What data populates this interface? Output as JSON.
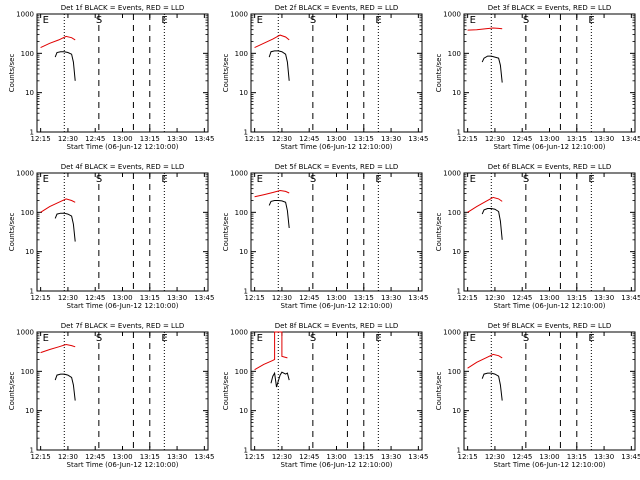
{
  "figure": {
    "x_tick_labels": [
      "12:15",
      "12:30",
      "12:45",
      "13:00",
      "13:15",
      "13:30",
      "13:45"
    ],
    "y_tick_labels": [
      "1",
      "10",
      "100",
      "1000"
    ],
    "ylabel": "Counts/sec",
    "xlabel": "Start Time (06-Jun-12 12:10:00)",
    "markers": [
      "E",
      "S",
      "E"
    ],
    "colors": {
      "events": "#000000",
      "lld": "#e00000",
      "axes": "#000000",
      "background": "#ffffff"
    }
  },
  "chart_data": [
    {
      "type": "line",
      "title": "Det 1f BLACK = Events, RED = LLD",
      "xlabel": "Start Time (06-Jun-12 12:10:00)",
      "ylabel": "Counts/sec",
      "xlim": [
        "12:15",
        "13:45"
      ],
      "ylim": [
        1,
        1000
      ],
      "yscale": "log",
      "grid": false,
      "vlines": {
        "dotted": [
          "12:28",
          "13:23"
        ],
        "dashed": [
          "12:47",
          "13:06",
          "13:15"
        ]
      },
      "series": [
        {
          "name": "LLD",
          "color": "#e00000",
          "x": [
            "12:15",
            "12:20",
            "12:25",
            "12:29",
            "12:32",
            "12:34"
          ],
          "values": [
            140,
            180,
            220,
            270,
            250,
            220
          ]
        },
        {
          "name": "Events",
          "color": "#000000",
          "x": [
            "12:23",
            "12:24",
            "12:26",
            "12:28",
            "12:30",
            "12:32",
            "12:33",
            "12:34"
          ],
          "values": [
            80,
            105,
            110,
            110,
            105,
            95,
            60,
            20
          ]
        }
      ]
    },
    {
      "type": "line",
      "title": "Det 2f BLACK = Events, RED = LLD",
      "xlabel": "Start Time (06-Jun-12 12:10:00)",
      "ylabel": "Counts/sec",
      "xlim": [
        "12:15",
        "13:45"
      ],
      "ylim": [
        1,
        1000
      ],
      "yscale": "log",
      "grid": false,
      "vlines": {
        "dotted": [
          "12:28",
          "13:23"
        ],
        "dashed": [
          "12:47",
          "13:06",
          "13:15"
        ]
      },
      "series": [
        {
          "name": "LLD",
          "color": "#e00000",
          "x": [
            "12:15",
            "12:20",
            "12:25",
            "12:29",
            "12:32",
            "12:34"
          ],
          "values": [
            140,
            180,
            230,
            290,
            260,
            220
          ]
        },
        {
          "name": "Events",
          "color": "#000000",
          "x": [
            "12:23",
            "12:24",
            "12:26",
            "12:28",
            "12:30",
            "12:32",
            "12:33",
            "12:34"
          ],
          "values": [
            80,
            110,
            115,
            115,
            110,
            95,
            60,
            20
          ]
        }
      ]
    },
    {
      "type": "line",
      "title": "Det 3f BLACK = Events, RED = LLD",
      "xlabel": "Start Time (06-Jun-12 12:10:00)",
      "ylabel": "Counts/sec",
      "xlim": [
        "12:15",
        "13:45"
      ],
      "ylim": [
        1,
        1000
      ],
      "yscale": "log",
      "grid": false,
      "vlines": {
        "dotted": [
          "12:28",
          "13:23"
        ],
        "dashed": [
          "12:47",
          "13:06",
          "13:15"
        ]
      },
      "series": [
        {
          "name": "LLD",
          "color": "#e00000",
          "x": [
            "12:15",
            "12:20",
            "12:25",
            "12:29",
            "12:32",
            "12:34"
          ],
          "values": [
            390,
            400,
            420,
            440,
            430,
            420
          ]
        },
        {
          "name": "Events",
          "color": "#000000",
          "x": [
            "12:23",
            "12:24",
            "12:26",
            "12:28",
            "12:30",
            "12:32",
            "12:33",
            "12:34"
          ],
          "values": [
            60,
            75,
            85,
            85,
            80,
            75,
            50,
            18
          ]
        }
      ]
    },
    {
      "type": "line",
      "title": "Det 4f BLACK = Events, RED = LLD",
      "xlabel": "Start Time (06-Jun-12 12:10:00)",
      "ylabel": "Counts/sec",
      "xlim": [
        "12:15",
        "13:45"
      ],
      "ylim": [
        1,
        1000
      ],
      "yscale": "log",
      "grid": false,
      "vlines": {
        "dotted": [
          "12:28",
          "13:23"
        ],
        "dashed": [
          "12:47",
          "13:06",
          "13:15"
        ]
      },
      "series": [
        {
          "name": "LLD",
          "color": "#e00000",
          "x": [
            "12:15",
            "12:20",
            "12:25",
            "12:29",
            "12:32",
            "12:34"
          ],
          "values": [
            100,
            140,
            180,
            220,
            200,
            180
          ]
        },
        {
          "name": "Events",
          "color": "#000000",
          "x": [
            "12:23",
            "12:24",
            "12:26",
            "12:28",
            "12:30",
            "12:32",
            "12:33",
            "12:34"
          ],
          "values": [
            70,
            90,
            95,
            95,
            90,
            80,
            50,
            18
          ]
        }
      ]
    },
    {
      "type": "line",
      "title": "Det 5f BLACK = Events, RED = LLD",
      "xlabel": "Start Time (06-Jun-12 12:10:00)",
      "ylabel": "Counts/sec",
      "xlim": [
        "12:15",
        "13:45"
      ],
      "ylim": [
        1,
        1000
      ],
      "yscale": "log",
      "grid": false,
      "vlines": {
        "dotted": [
          "12:28",
          "13:23"
        ],
        "dashed": [
          "12:47",
          "13:06",
          "13:15"
        ]
      },
      "series": [
        {
          "name": "LLD",
          "color": "#e00000",
          "x": [
            "12:15",
            "12:20",
            "12:25",
            "12:29",
            "12:32",
            "12:34"
          ],
          "values": [
            250,
            280,
            320,
            360,
            340,
            310
          ]
        },
        {
          "name": "Events",
          "color": "#000000",
          "x": [
            "12:23",
            "12:24",
            "12:26",
            "12:28",
            "12:30",
            "12:32",
            "12:33",
            "12:34"
          ],
          "values": [
            150,
            190,
            200,
            200,
            195,
            180,
            110,
            40
          ]
        }
      ]
    },
    {
      "type": "line",
      "title": "Det 6f BLACK = Events, RED = LLD",
      "xlabel": "Start Time (06-Jun-12 12:10:00)",
      "ylabel": "Counts/sec",
      "xlim": [
        "12:15",
        "13:45"
      ],
      "ylim": [
        1,
        1000
      ],
      "yscale": "log",
      "grid": false,
      "vlines": {
        "dotted": [
          "12:28",
          "13:23"
        ],
        "dashed": [
          "12:47",
          "13:06",
          "13:15"
        ]
      },
      "series": [
        {
          "name": "LLD",
          "color": "#e00000",
          "x": [
            "12:15",
            "12:20",
            "12:25",
            "12:29",
            "12:32",
            "12:34"
          ],
          "values": [
            100,
            140,
            190,
            240,
            220,
            190
          ]
        },
        {
          "name": "Events",
          "color": "#000000",
          "x": [
            "12:23",
            "12:24",
            "12:26",
            "12:28",
            "12:30",
            "12:32",
            "12:33",
            "12:34"
          ],
          "values": [
            90,
            115,
            125,
            125,
            120,
            105,
            60,
            20
          ]
        }
      ]
    },
    {
      "type": "line",
      "title": "Det 7f BLACK = Events, RED = LLD",
      "xlabel": "Start Time (06-Jun-12 12:10:00)",
      "ylabel": "Counts/sec",
      "xlim": [
        "12:15",
        "13:45"
      ],
      "ylim": [
        1,
        1000
      ],
      "yscale": "log",
      "grid": false,
      "vlines": {
        "dotted": [
          "12:28",
          "13:23"
        ],
        "dashed": [
          "12:47",
          "13:06",
          "13:15"
        ]
      },
      "series": [
        {
          "name": "LLD",
          "color": "#e00000",
          "x": [
            "12:15",
            "12:20",
            "12:25",
            "12:29",
            "12:32",
            "12:34"
          ],
          "values": [
            300,
            360,
            420,
            480,
            450,
            420
          ]
        },
        {
          "name": "Events",
          "color": "#000000",
          "x": [
            "12:23",
            "12:24",
            "12:26",
            "12:28",
            "12:30",
            "12:32",
            "12:33",
            "12:34"
          ],
          "values": [
            60,
            80,
            85,
            85,
            80,
            70,
            45,
            18
          ]
        }
      ]
    },
    {
      "type": "line",
      "title": "Det 8f BLACK = Events, RED = LLD",
      "xlabel": "Start Time (06-Jun-12 12:10:00)",
      "ylabel": "Counts/sec",
      "xlim": [
        "12:15",
        "13:45"
      ],
      "ylim": [
        1,
        1000
      ],
      "yscale": "log",
      "grid": false,
      "vlines": {
        "dotted": [
          "12:28",
          "13:23"
        ],
        "dashed": [
          "12:47",
          "13:06",
          "13:15"
        ]
      },
      "series": [
        {
          "name": "LLD",
          "color": "#e00000",
          "x": [
            "12:15",
            "12:20",
            "12:25",
            "12:26",
            "12:26",
            "12:30",
            "12:30",
            "12:33"
          ],
          "values": [
            110,
            150,
            190,
            200,
            1000,
            1000,
            240,
            220
          ]
        },
        {
          "name": "Events",
          "color": "#000000",
          "x": [
            "12:24",
            "12:25",
            "12:26",
            "12:27",
            "12:29",
            "12:30",
            "12:32",
            "12:33",
            "12:34"
          ],
          "values": [
            50,
            75,
            90,
            40,
            80,
            95,
            85,
            90,
            60
          ]
        }
      ]
    },
    {
      "type": "line",
      "title": "Det 9f BLACK = Events, RED = LLD",
      "xlabel": "Start Time (06-Jun-12 12:10:00)",
      "ylabel": "Counts/sec",
      "xlim": [
        "12:15",
        "13:45"
      ],
      "ylim": [
        1,
        1000
      ],
      "yscale": "log",
      "grid": false,
      "vlines": {
        "dotted": [
          "12:28",
          "13:23"
        ],
        "dashed": [
          "12:47",
          "13:06",
          "13:15"
        ]
      },
      "series": [
        {
          "name": "LLD",
          "color": "#e00000",
          "x": [
            "12:15",
            "12:20",
            "12:25",
            "12:29",
            "12:32",
            "12:34"
          ],
          "values": [
            120,
            170,
            220,
            270,
            250,
            220
          ]
        },
        {
          "name": "Events",
          "color": "#000000",
          "x": [
            "12:23",
            "12:24",
            "12:26",
            "12:28",
            "12:30",
            "12:32",
            "12:33",
            "12:34"
          ],
          "values": [
            65,
            85,
            90,
            90,
            85,
            75,
            45,
            18
          ]
        }
      ]
    }
  ]
}
